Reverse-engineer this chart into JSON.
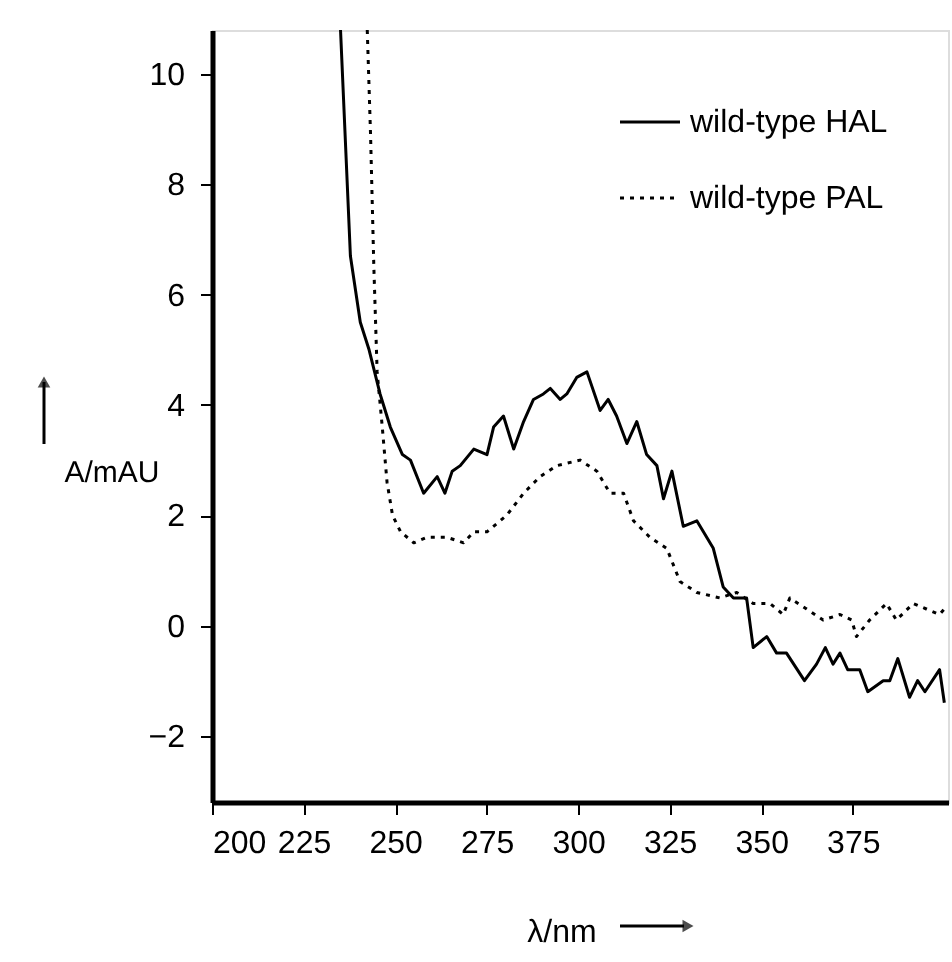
{
  "chart_data": {
    "type": "line",
    "xlabel": "λ/nm",
    "ylabel": "A/mAU",
    "xlim": [
      200,
      401
    ],
    "ylim": [
      -3.2,
      10.8
    ],
    "xticks": [
      200,
      225,
      250,
      275,
      300,
      325,
      350,
      375
    ],
    "yticks": [
      -2,
      0,
      2,
      4,
      6,
      8,
      10
    ],
    "grid": false,
    "legend": "top right",
    "marker": "none",
    "series": [
      {
        "name": "wild-type HAL",
        "color": "#000000",
        "line_style": "solid",
        "x": [
          235.1,
          237.8,
          240.5,
          242.9,
          245.9,
          248.7,
          252,
          254.2,
          257.8,
          261.5,
          263.6,
          265.6,
          267.8,
          271.5,
          275.1,
          276.9,
          279.6,
          282.4,
          285.1,
          287.8,
          290.5,
          292.4,
          295.1,
          296.9,
          299.6,
          302.4,
          306,
          308.2,
          310.5,
          313.3,
          316,
          318.7,
          321.5,
          323.3,
          325.6,
          328.7,
          332.4,
          336.9,
          339.6,
          342.4,
          346,
          347.8,
          351.5,
          354.2,
          356.9,
          361.8,
          365.1,
          367.5,
          369.6,
          371.5,
          373.6,
          376.9,
          379.1,
          383.3,
          385.1,
          387.3,
          390.5,
          392.7,
          394.7,
          398.7,
          400
        ],
        "values": [
          10.8,
          6.7,
          5.5,
          5.0,
          4.2,
          3.6,
          3.1,
          3.0,
          2.4,
          2.7,
          2.4,
          2.8,
          2.9,
          3.2,
          3.1,
          3.6,
          3.8,
          3.2,
          3.7,
          4.1,
          4.2,
          4.3,
          4.1,
          4.2,
          4.5,
          4.6,
          3.9,
          4.1,
          3.8,
          3.3,
          3.7,
          3.1,
          2.9,
          2.3,
          2.8,
          1.8,
          1.9,
          1.4,
          0.7,
          0.5,
          0.5,
          -0.4,
          -0.2,
          -0.5,
          -0.5,
          -1.0,
          -0.7,
          -0.4,
          -0.7,
          -0.5,
          -0.8,
          -0.8,
          -1.2,
          -1.0,
          -1.0,
          -0.6,
          -1.3,
          -1.0,
          -1.2,
          -0.8,
          -1.4
        ]
      },
      {
        "name": "wild-type PAL",
        "color": "#000000",
        "line_style": "dotted",
        "x": [
          242.4,
          243.3,
          244.2,
          245.1,
          246.5,
          247.8,
          249.3,
          251.5,
          255.1,
          258.7,
          264.2,
          268.7,
          271.5,
          275.1,
          280.5,
          285.1,
          289.6,
          294.2,
          300.5,
          305.1,
          308.7,
          312.4,
          315.1,
          319.6,
          324.2,
          327.8,
          332.4,
          338.7,
          343.3,
          347.8,
          352.4,
          356,
          357.8,
          362.4,
          366.9,
          371.5,
          374.7,
          376,
          379.6,
          384.2,
          386.9,
          391.5,
          395.1,
          398.7,
          400
        ],
        "values": [
          10.8,
          8.9,
          6.5,
          4.6,
          3.6,
          2.6,
          2.0,
          1.7,
          1.5,
          1.6,
          1.6,
          1.5,
          1.7,
          1.7,
          2.0,
          2.4,
          2.7,
          2.9,
          3.0,
          2.8,
          2.4,
          2.4,
          1.9,
          1.6,
          1.4,
          0.8,
          0.6,
          0.5,
          0.6,
          0.4,
          0.4,
          0.2,
          0.5,
          0.3,
          0.1,
          0.2,
          0.1,
          -0.2,
          0.1,
          0.4,
          0.1,
          0.4,
          0.3,
          0.2,
          0.3
        ]
      }
    ]
  }
}
